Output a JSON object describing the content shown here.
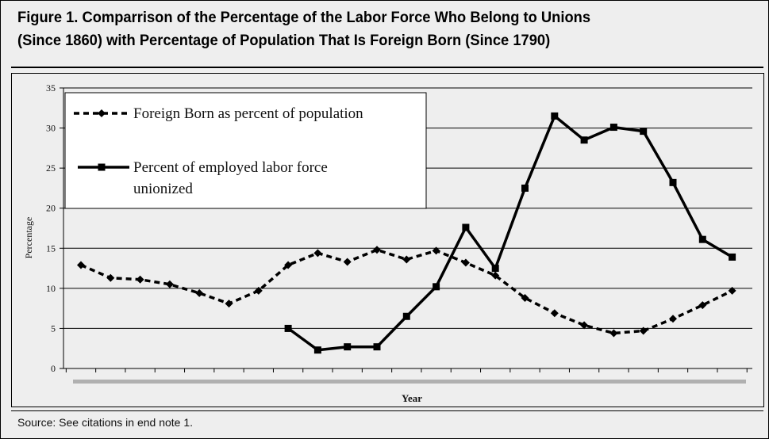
{
  "figure": {
    "title_line1": "Figure 1. Comparrison of the Percentage of the Labor Force Who Belong to Unions",
    "title_line2": "(Since 1860) with Percentage of Population That Is Foreign Born (Since 1790)",
    "source": "Source: See citations in end note 1."
  },
  "chart_data": {
    "type": "line",
    "xlabel": "Year",
    "ylabel": "Percentage",
    "ylim": [
      0,
      35
    ],
    "yticks": [
      0,
      5,
      10,
      15,
      20,
      25,
      30,
      35
    ],
    "grid": true,
    "legend_position": "top-left",
    "x": [
      1,
      2,
      3,
      4,
      5,
      6,
      7,
      8,
      9,
      10,
      11,
      12,
      13,
      14,
      15,
      16,
      17,
      18,
      19,
      20,
      21,
      22,
      23
    ],
    "series": [
      {
        "name": "Foreign Born as percent of population",
        "style": "dashed",
        "marker": "diamond",
        "values": [
          12.9,
          11.3,
          11.1,
          10.5,
          9.4,
          8.1,
          9.7,
          12.9,
          14.4,
          13.3,
          14.8,
          13.6,
          14.7,
          13.2,
          11.6,
          8.8,
          6.9,
          5.4,
          4.4,
          4.7,
          6.2,
          7.9,
          9.7
        ]
      },
      {
        "name": "Percent of employed labor force unionized",
        "style": "solid",
        "marker": "square",
        "values": [
          null,
          null,
          null,
          null,
          null,
          null,
          null,
          5.0,
          2.3,
          2.7,
          2.7,
          6.5,
          10.2,
          17.6,
          12.5,
          22.5,
          31.5,
          28.5,
          30.1,
          29.6,
          23.2,
          16.1,
          13.9
        ]
      }
    ],
    "colors": {
      "line": "#000000",
      "grid": "#000000",
      "baseline_band": "#b0b0b0"
    }
  }
}
